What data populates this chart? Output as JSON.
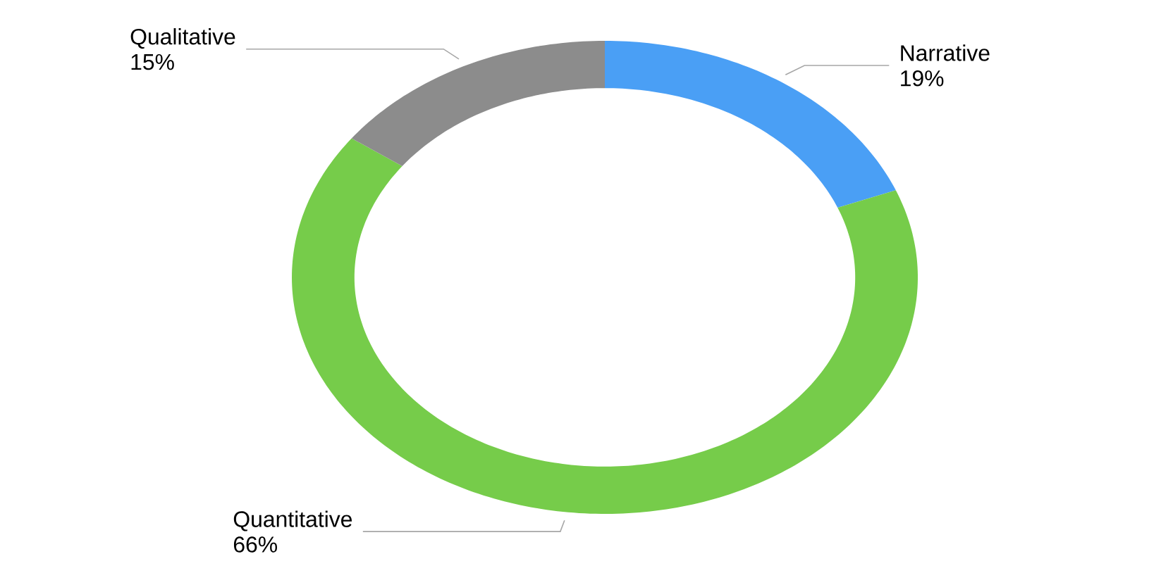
{
  "chart_data": {
    "type": "donut",
    "categories": [
      "Narrative",
      "Quantitative",
      "Qualitative"
    ],
    "values": [
      19,
      66,
      15
    ],
    "value_labels": [
      "19%",
      "66%",
      "15%"
    ],
    "colors": [
      "#4a9ff5",
      "#76cc4a",
      "#8c8c8c"
    ]
  }
}
